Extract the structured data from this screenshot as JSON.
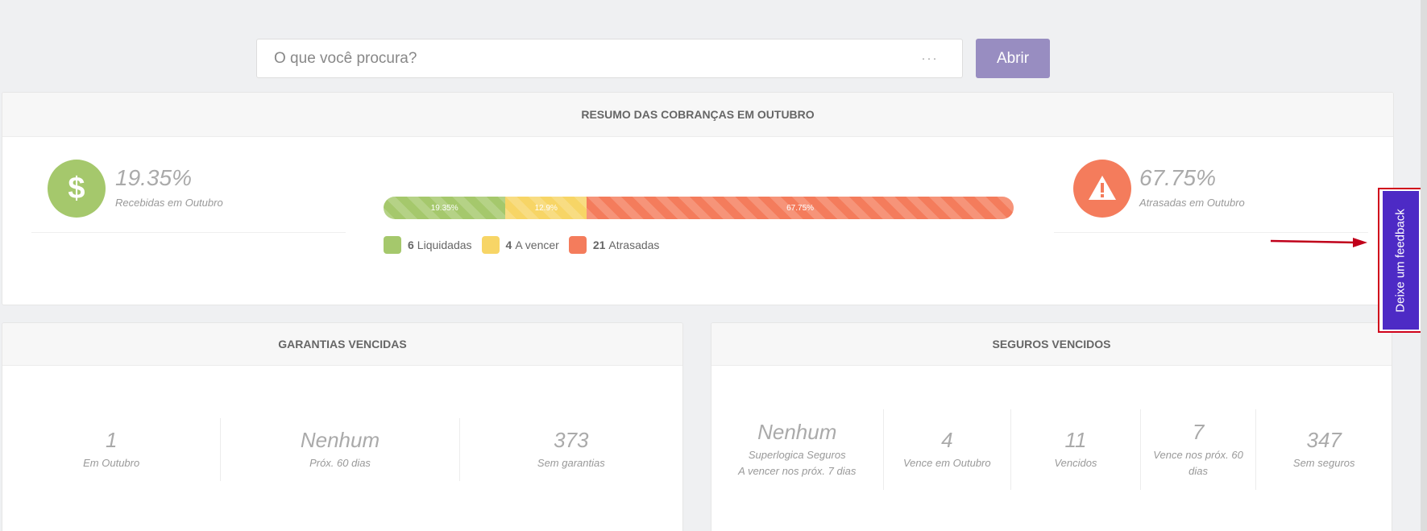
{
  "search": {
    "placeholder": "O que você procura?",
    "dots": "···",
    "button_label": "Abrir"
  },
  "resumo": {
    "title": "RESUMO DAS COBRANÇAS EM OUTUBRO",
    "left": {
      "pct": "19.35%",
      "label": "Recebidas em Outubro",
      "icon": "dollar-icon",
      "color": "#a5c86c"
    },
    "right": {
      "pct": "67.75%",
      "label": "Atrasadas em Outubro",
      "icon": "warning-icon",
      "color": "#f47c5c"
    },
    "bar": [
      {
        "label": "19.35%",
        "value": 19.35,
        "color": "#a5c86c"
      },
      {
        "label": "12.9%",
        "value": 12.9,
        "color": "#f7d566"
      },
      {
        "label": "67.75%",
        "value": 67.75,
        "color": "#f47c5c"
      }
    ],
    "legend": [
      {
        "count": "6",
        "label": "Liquidadas"
      },
      {
        "count": "4",
        "label": "A vencer"
      },
      {
        "count": "21",
        "label": "Atrasadas"
      }
    ]
  },
  "garantias": {
    "title": "GARANTIAS VENCIDAS",
    "cols": [
      {
        "num": "1",
        "label": "Em Outubro"
      },
      {
        "num": "Nenhum",
        "label": "Próx. 60 dias"
      },
      {
        "num": "373",
        "label": "Sem garantias"
      }
    ]
  },
  "seguros": {
    "title": "SEGUROS VENCIDOS",
    "cols": [
      {
        "num": "Nenhum",
        "label": "Superlogica Seguros",
        "label2": "A vencer nos próx. 7 dias"
      },
      {
        "num": "4",
        "label": "Vence em Outubro"
      },
      {
        "num": "11",
        "label": "Vencidos"
      },
      {
        "num": "7",
        "label": "Vence nos próx. 60",
        "label2": "dias"
      },
      {
        "num": "347",
        "label": "Sem seguros"
      }
    ]
  },
  "feedback": {
    "label": "Deixe um feedback"
  }
}
